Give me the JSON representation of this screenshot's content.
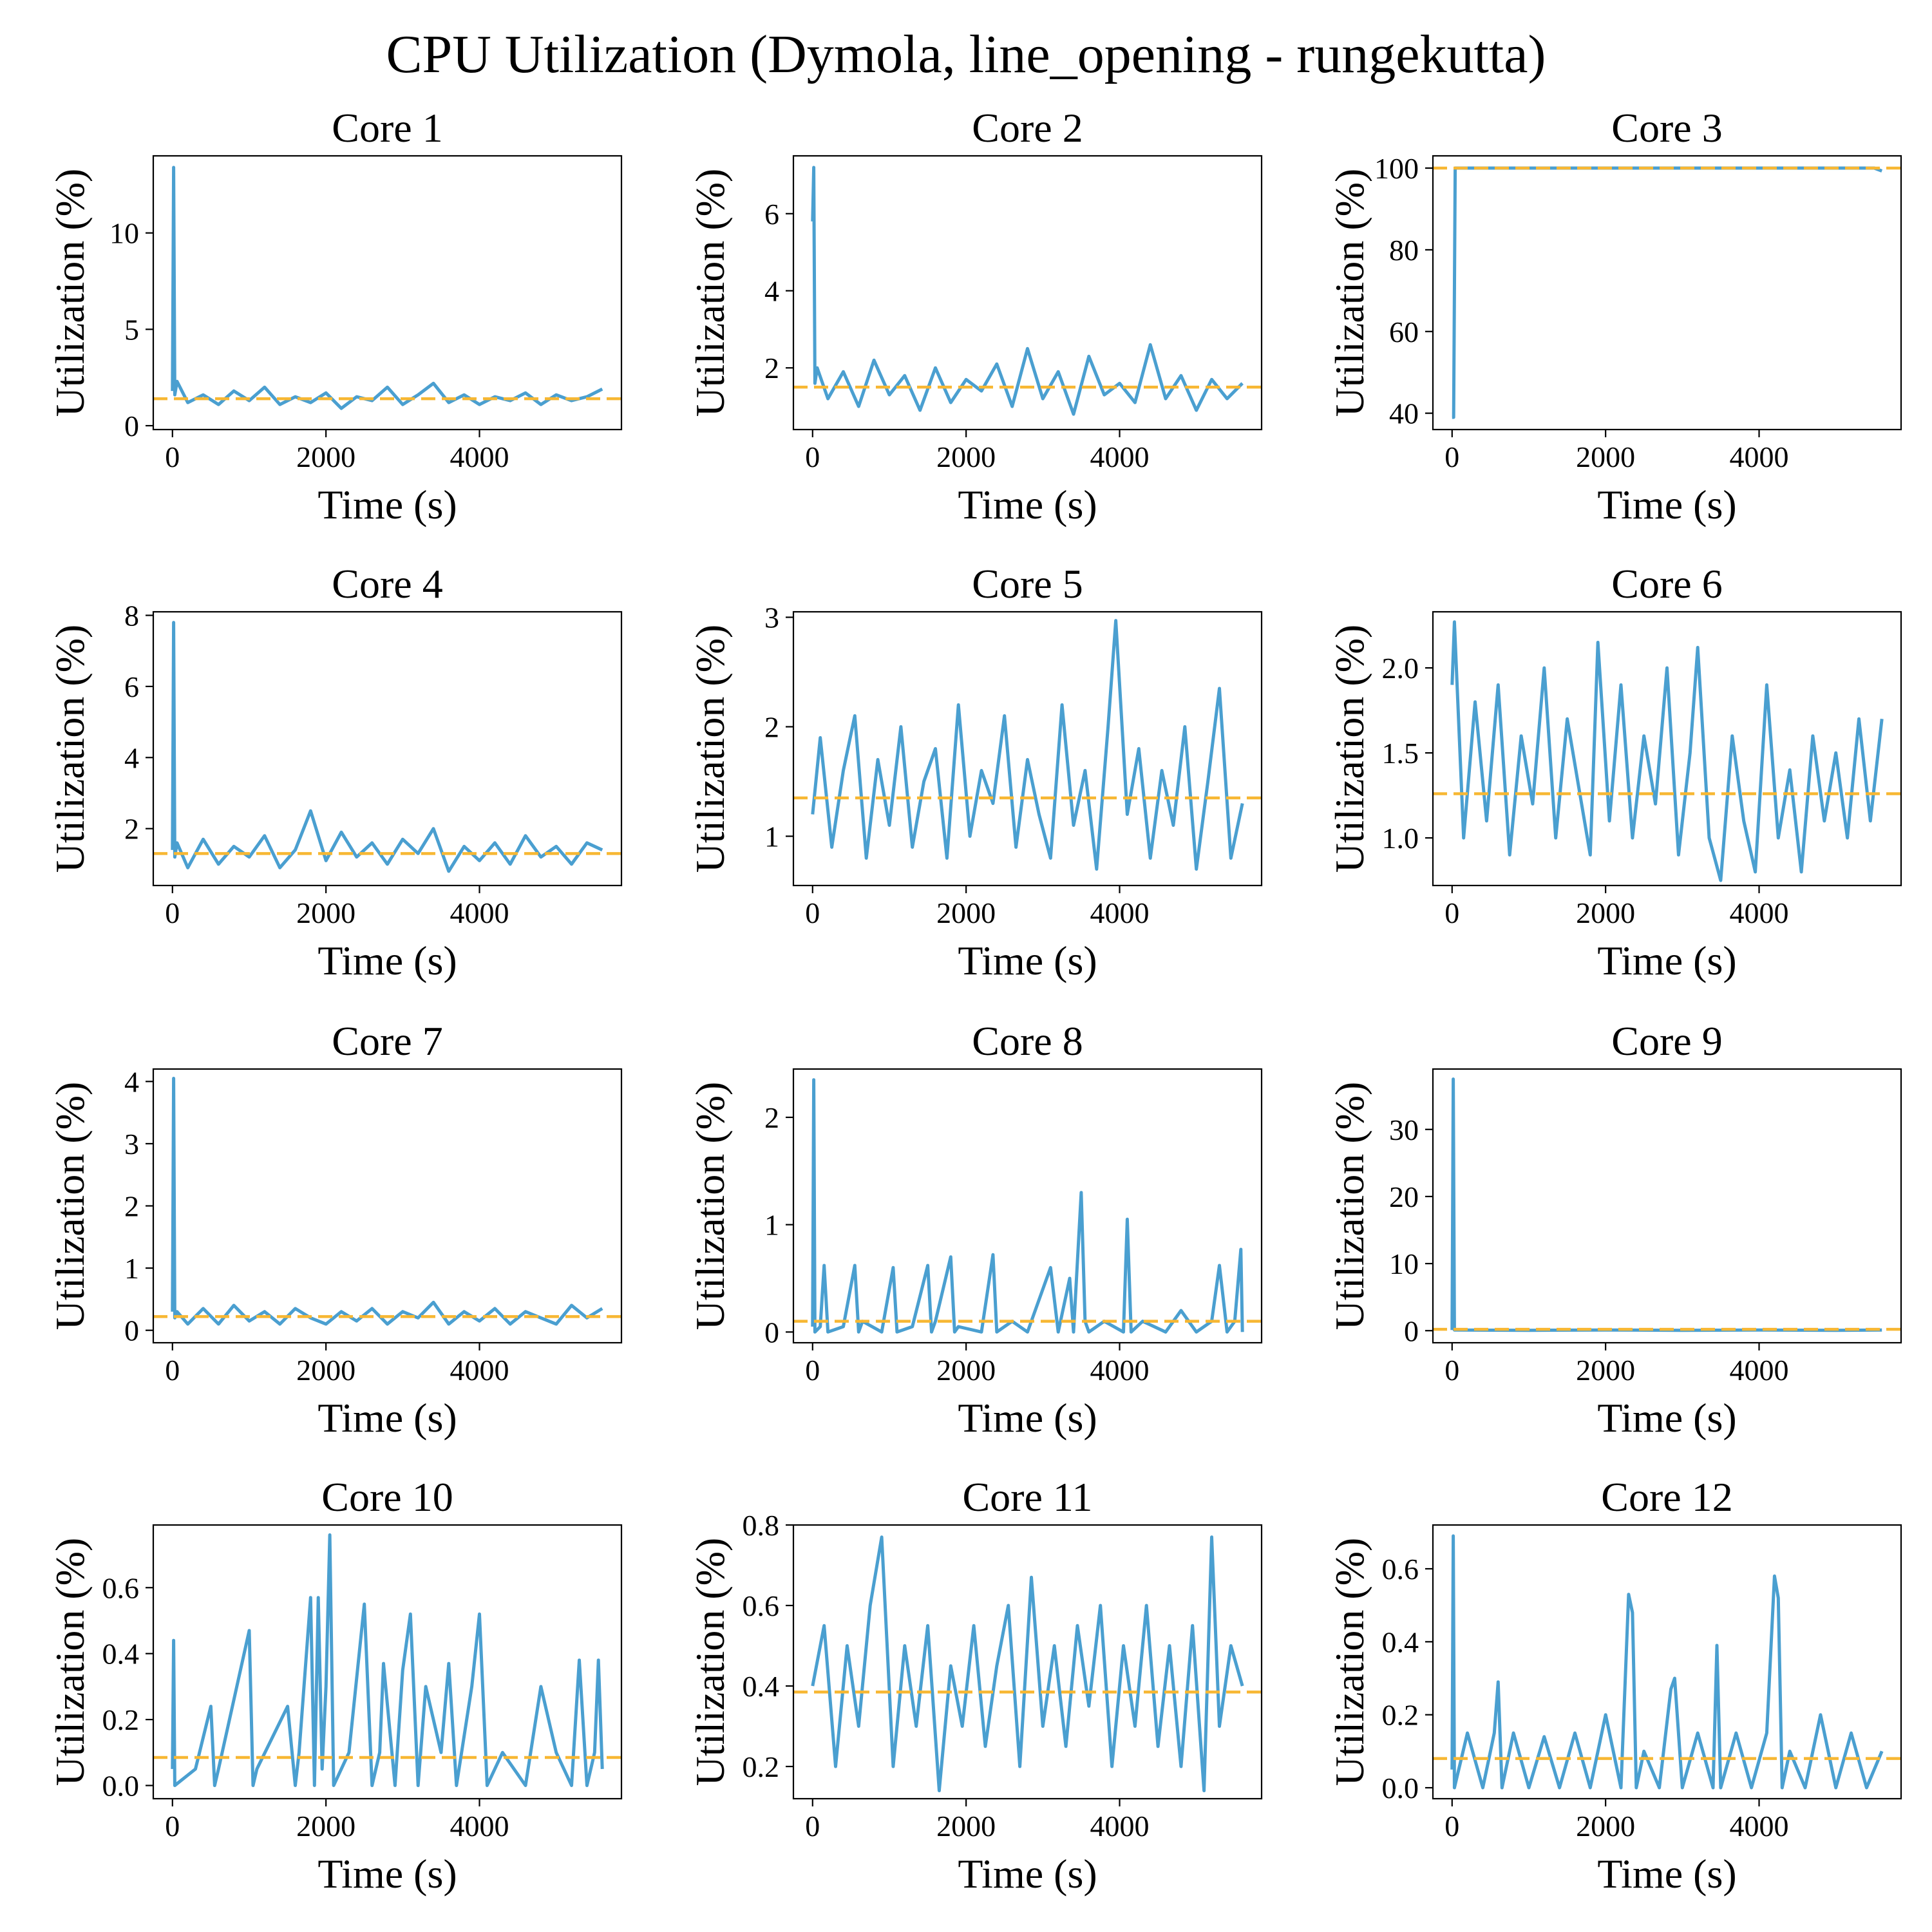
{
  "figure": {
    "title": "CPU Utilization (Dymola, line_opening - rungekutta)"
  },
  "colors": {
    "series": "#4a9fd0",
    "mean_line": "#f7b733",
    "axis": "#000000"
  },
  "chart_data": [
    {
      "type": "line",
      "title": "Core 1",
      "xlabel": "Time (s)",
      "ylabel": "Utilization (%)",
      "xlim": [
        -250,
        5850
      ],
      "ylim": [
        -0.2,
        14
      ],
      "xticks": [
        0,
        2000,
        4000
      ],
      "xtick_labels": [
        "0",
        "2000",
        "4000"
      ],
      "yticks": [
        0,
        5,
        10
      ],
      "ytick_labels": [
        "0",
        "5",
        "10"
      ],
      "mean": 1.4,
      "series_x_end": 5600,
      "x": [
        0,
        15,
        30,
        60,
        200,
        400,
        600,
        800,
        1000,
        1200,
        1400,
        1600,
        1800,
        2000,
        2200,
        2400,
        2600,
        2800,
        3000,
        3200,
        3400,
        3600,
        3800,
        4000,
        4200,
        4400,
        4600,
        4800,
        5000,
        5200,
        5400,
        5600
      ],
      "y": [
        1.8,
        13.4,
        1.6,
        2.3,
        1.2,
        1.6,
        1.1,
        1.8,
        1.3,
        2.0,
        1.1,
        1.5,
        1.2,
        1.7,
        0.9,
        1.5,
        1.3,
        2.0,
        1.1,
        1.6,
        2.2,
        1.2,
        1.6,
        1.1,
        1.5,
        1.3,
        1.7,
        1.1,
        1.6,
        1.3,
        1.5,
        1.9
      ]
    },
    {
      "type": "line",
      "title": "Core 2",
      "xlabel": "Time (s)",
      "ylabel": "Utilization (%)",
      "xlim": [
        -250,
        5850
      ],
      "ylim": [
        0.4,
        7.5
      ],
      "xticks": [
        0,
        2000,
        4000
      ],
      "xtick_labels": [
        "0",
        "2000",
        "4000"
      ],
      "yticks": [
        2,
        4,
        6
      ],
      "ytick_labels": [
        "2",
        "4",
        "6"
      ],
      "mean": 1.5,
      "series_x_end": 5600,
      "x": [
        0,
        15,
        30,
        60,
        200,
        400,
        600,
        800,
        1000,
        1200,
        1400,
        1600,
        1800,
        2000,
        2200,
        2400,
        2600,
        2800,
        3000,
        3200,
        3400,
        3600,
        3800,
        4000,
        4200,
        4400,
        4600,
        4800,
        5000,
        5200,
        5400,
        5600
      ],
      "y": [
        5.8,
        7.2,
        1.6,
        2.0,
        1.2,
        1.9,
        1.0,
        2.2,
        1.3,
        1.8,
        0.9,
        2.0,
        1.1,
        1.7,
        1.4,
        2.1,
        1.0,
        2.5,
        1.2,
        1.9,
        0.8,
        2.3,
        1.3,
        1.6,
        1.1,
        2.6,
        1.2,
        1.8,
        0.9,
        1.7,
        1.2,
        1.6
      ]
    },
    {
      "type": "line",
      "title": "Core 3",
      "xlabel": "Time (s)",
      "ylabel": "Utilization (%)",
      "xlim": [
        -250,
        5850
      ],
      "ylim": [
        36,
        103
      ],
      "xticks": [
        0,
        2000,
        4000
      ],
      "xtick_labels": [
        "0",
        "2000",
        "4000"
      ],
      "yticks": [
        40,
        60,
        80,
        100
      ],
      "ytick_labels": [
        "40",
        "60",
        "80",
        "100"
      ],
      "mean": 100,
      "series_x_end": 5600,
      "x": [
        0,
        20,
        40,
        1000,
        2000,
        3000,
        4000,
        5000,
        5500,
        5600
      ],
      "y": [
        39,
        39,
        100,
        100,
        100,
        100,
        100,
        100,
        100,
        99.3
      ]
    },
    {
      "type": "line",
      "title": "Core 4",
      "xlabel": "Time (s)",
      "ylabel": "Utilization (%)",
      "xlim": [
        -250,
        5850
      ],
      "ylim": [
        0.4,
        8.1
      ],
      "xticks": [
        0,
        2000,
        4000
      ],
      "xtick_labels": [
        "0",
        "2000",
        "4000"
      ],
      "yticks": [
        2,
        4,
        6,
        8
      ],
      "ytick_labels": [
        "2",
        "4",
        "6",
        "8"
      ],
      "mean": 1.3,
      "series_x_end": 5600,
      "x": [
        0,
        15,
        30,
        60,
        200,
        400,
        600,
        800,
        1000,
        1200,
        1400,
        1600,
        1800,
        2000,
        2200,
        2400,
        2600,
        2800,
        3000,
        3200,
        3400,
        3600,
        3800,
        4000,
        4200,
        4400,
        4600,
        4800,
        5000,
        5200,
        5400,
        5600
      ],
      "y": [
        1.4,
        7.8,
        1.2,
        1.6,
        0.9,
        1.7,
        1.0,
        1.5,
        1.2,
        1.8,
        0.9,
        1.4,
        2.5,
        1.1,
        1.9,
        1.2,
        1.6,
        1.0,
        1.7,
        1.3,
        2.0,
        0.8,
        1.5,
        1.1,
        1.6,
        1.0,
        1.8,
        1.2,
        1.5,
        1.0,
        1.6,
        1.4
      ]
    },
    {
      "type": "line",
      "title": "Core 5",
      "xlabel": "Time (s)",
      "ylabel": "Utilization (%)",
      "xlim": [
        -250,
        5850
      ],
      "ylim": [
        0.55,
        3.05
      ],
      "xticks": [
        0,
        2000,
        4000
      ],
      "xtick_labels": [
        "0",
        "2000",
        "4000"
      ],
      "yticks": [
        1,
        2,
        3
      ],
      "ytick_labels": [
        "1",
        "2",
        "3"
      ],
      "mean": 1.35,
      "series_x_end": 5600,
      "x": [
        0,
        100,
        250,
        400,
        550,
        700,
        850,
        1000,
        1150,
        1300,
        1450,
        1600,
        1750,
        1900,
        2050,
        2200,
        2350,
        2500,
        2650,
        2800,
        2950,
        3100,
        3250,
        3400,
        3550,
        3700,
        3850,
        3950,
        4100,
        4250,
        4400,
        4550,
        4700,
        4850,
        5000,
        5150,
        5300,
        5450,
        5600
      ],
      "y": [
        1.2,
        1.9,
        0.9,
        1.6,
        2.1,
        0.8,
        1.7,
        1.1,
        2.0,
        0.9,
        1.5,
        1.8,
        0.8,
        2.2,
        1.0,
        1.6,
        1.3,
        2.1,
        0.9,
        1.7,
        1.2,
        0.8,
        2.2,
        1.1,
        1.6,
        0.7,
        2.0,
        2.97,
        1.2,
        1.8,
        0.8,
        1.6,
        1.1,
        2.0,
        0.7,
        1.5,
        2.35,
        0.8,
        1.3
      ]
    },
    {
      "type": "line",
      "title": "Core 6",
      "xlabel": "Time (s)",
      "ylabel": "Utilization (%)",
      "xlim": [
        -250,
        5850
      ],
      "ylim": [
        0.72,
        2.33
      ],
      "xticks": [
        0,
        2000,
        4000
      ],
      "xtick_labels": [
        "0",
        "2000",
        "4000"
      ],
      "yticks": [
        1.0,
        1.5,
        2.0
      ],
      "ytick_labels": [
        "1.0",
        "1.5",
        "2.0"
      ],
      "mean": 1.26,
      "series_x_end": 5600,
      "x": [
        0,
        30,
        150,
        300,
        450,
        600,
        750,
        900,
        1050,
        1200,
        1350,
        1500,
        1650,
        1800,
        1900,
        2050,
        2200,
        2350,
        2500,
        2650,
        2800,
        2950,
        3100,
        3200,
        3350,
        3500,
        3650,
        3800,
        3950,
        4100,
        4250,
        4400,
        4550,
        4700,
        4850,
        5000,
        5150,
        5300,
        5450,
        5600
      ],
      "y": [
        1.9,
        2.27,
        1.0,
        1.8,
        1.1,
        1.9,
        0.9,
        1.6,
        1.2,
        2.0,
        1.0,
        1.7,
        1.3,
        0.9,
        2.15,
        1.1,
        1.9,
        1.0,
        1.6,
        1.2,
        2.0,
        0.9,
        1.5,
        2.12,
        1.0,
        0.75,
        1.6,
        1.1,
        0.8,
        1.9,
        1.0,
        1.4,
        0.8,
        1.6,
        1.1,
        1.5,
        1.0,
        1.7,
        1.1,
        1.7
      ]
    },
    {
      "type": "line",
      "title": "Core 7",
      "xlabel": "Time (s)",
      "ylabel": "Utilization (%)",
      "xlim": [
        -250,
        5850
      ],
      "ylim": [
        -0.2,
        4.2
      ],
      "xticks": [
        0,
        2000,
        4000
      ],
      "xtick_labels": [
        "0",
        "2000",
        "4000"
      ],
      "yticks": [
        0,
        1,
        2,
        3,
        4
      ],
      "ytick_labels": [
        "0",
        "1",
        "2",
        "3",
        "4"
      ],
      "mean": 0.22,
      "series_x_end": 5600,
      "x": [
        0,
        15,
        30,
        60,
        200,
        400,
        600,
        800,
        1000,
        1200,
        1400,
        1600,
        1800,
        2000,
        2200,
        2400,
        2600,
        2800,
        3000,
        3200,
        3400,
        3600,
        3800,
        4000,
        4200,
        4400,
        4600,
        4800,
        5000,
        5200,
        5400,
        5600
      ],
      "y": [
        0.3,
        4.05,
        0.2,
        0.3,
        0.1,
        0.35,
        0.1,
        0.4,
        0.15,
        0.3,
        0.1,
        0.35,
        0.2,
        0.1,
        0.3,
        0.15,
        0.35,
        0.1,
        0.3,
        0.2,
        0.45,
        0.1,
        0.3,
        0.15,
        0.35,
        0.1,
        0.3,
        0.2,
        0.1,
        0.4,
        0.2,
        0.35
      ]
    },
    {
      "type": "line",
      "title": "Core 8",
      "xlabel": "Time (s)",
      "ylabel": "Utilization (%)",
      "xlim": [
        -250,
        5850
      ],
      "ylim": [
        -0.1,
        2.45
      ],
      "xticks": [
        0,
        2000,
        4000
      ],
      "xtick_labels": [
        "0",
        "2000",
        "4000"
      ],
      "yticks": [
        0,
        1,
        2
      ],
      "ytick_labels": [
        "0",
        "1",
        "2"
      ],
      "mean": 0.1,
      "series_x_end": 5600,
      "x": [
        0,
        15,
        30,
        100,
        150,
        200,
        400,
        550,
        600,
        650,
        900,
        1050,
        1100,
        1300,
        1500,
        1550,
        1600,
        1800,
        1850,
        1900,
        2200,
        2350,
        2400,
        2600,
        2800,
        3100,
        3200,
        3350,
        3400,
        3500,
        3550,
        3600,
        3800,
        4050,
        4100,
        4150,
        4300,
        4600,
        4800,
        5000,
        5200,
        5300,
        5400,
        5500,
        5580,
        5600
      ],
      "y": [
        0.05,
        2.35,
        0.0,
        0.05,
        0.62,
        0.0,
        0.05,
        0.62,
        0.0,
        0.1,
        0.0,
        0.6,
        0.0,
        0.05,
        0.62,
        0.0,
        0.1,
        0.7,
        0.0,
        0.05,
        0.0,
        0.72,
        0.0,
        0.1,
        0.0,
        0.6,
        0.0,
        0.5,
        0.0,
        1.3,
        0.1,
        0.0,
        0.1,
        0.0,
        1.05,
        0.0,
        0.1,
        0.0,
        0.2,
        0.0,
        0.1,
        0.62,
        0.0,
        0.1,
        0.77,
        0.0
      ]
    },
    {
      "type": "line",
      "title": "Core 9",
      "xlabel": "Time (s)",
      "ylabel": "Utilization (%)",
      "xlim": [
        -250,
        5850
      ],
      "ylim": [
        -1.8,
        39
      ],
      "xticks": [
        0,
        2000,
        4000
      ],
      "xtick_labels": [
        "0",
        "2000",
        "4000"
      ],
      "yticks": [
        0,
        10,
        20,
        30
      ],
      "ytick_labels": [
        "0",
        "10",
        "20",
        "30"
      ],
      "mean": 0.2,
      "series_x_end": 5600,
      "x": [
        0,
        15,
        30,
        1000,
        2000,
        3000,
        4000,
        5000,
        5600
      ],
      "y": [
        0.1,
        37.5,
        0.1,
        0.05,
        0.1,
        0.05,
        0.1,
        0.05,
        0.1
      ]
    },
    {
      "type": "line",
      "title": "Core 10",
      "xlabel": "Time (s)",
      "ylabel": "Utilization (%)",
      "xlim": [
        -250,
        5850
      ],
      "ylim": [
        -0.04,
        0.79
      ],
      "xticks": [
        0,
        2000,
        4000
      ],
      "xtick_labels": [
        "0",
        "2000",
        "4000"
      ],
      "yticks": [
        0.0,
        0.2,
        0.4,
        0.6
      ],
      "ytick_labels": [
        "0.0",
        "0.2",
        "0.4",
        "0.6"
      ],
      "mean": 0.085,
      "series_x_end": 5600,
      "x": [
        0,
        15,
        30,
        300,
        500,
        550,
        600,
        1000,
        1050,
        1100,
        1500,
        1600,
        1650,
        1800,
        1850,
        1900,
        1950,
        2000,
        2050,
        2100,
        2300,
        2500,
        2600,
        2700,
        2750,
        2900,
        3000,
        3100,
        3200,
        3300,
        3500,
        3600,
        3700,
        3900,
        4000,
        4100,
        4300,
        4600,
        4800,
        5000,
        5200,
        5300,
        5400,
        5500,
        5550,
        5600
      ],
      "y": [
        0.05,
        0.44,
        0.0,
        0.05,
        0.24,
        0.0,
        0.05,
        0.47,
        0.0,
        0.05,
        0.24,
        0.0,
        0.1,
        0.57,
        0.0,
        0.57,
        0.05,
        0.3,
        0.76,
        0.0,
        0.1,
        0.55,
        0.0,
        0.1,
        0.37,
        0.0,
        0.35,
        0.52,
        0.0,
        0.3,
        0.1,
        0.37,
        0.0,
        0.3,
        0.52,
        0.0,
        0.1,
        0.0,
        0.3,
        0.1,
        0.0,
        0.38,
        0.0,
        0.1,
        0.38,
        0.05
      ]
    },
    {
      "type": "line",
      "title": "Core 11",
      "xlabel": "Time (s)",
      "ylabel": "Utilization (%)",
      "xlim": [
        -250,
        5850
      ],
      "ylim": [
        0.12,
        0.8
      ],
      "xticks": [
        0,
        2000,
        4000
      ],
      "xtick_labels": [
        "0",
        "2000",
        "4000"
      ],
      "yticks": [
        0.2,
        0.4,
        0.6,
        0.8
      ],
      "ytick_labels": [
        "0.2",
        "0.4",
        "0.6",
        "0.8"
      ],
      "mean": 0.385,
      "series_x_end": 5600,
      "x": [
        0,
        150,
        300,
        450,
        600,
        750,
        900,
        1050,
        1200,
        1350,
        1500,
        1650,
        1800,
        1950,
        2100,
        2250,
        2400,
        2550,
        2700,
        2850,
        3000,
        3150,
        3300,
        3450,
        3600,
        3750,
        3900,
        4050,
        4200,
        4350,
        4500,
        4650,
        4800,
        4950,
        5100,
        5200,
        5300,
        5450,
        5600
      ],
      "y": [
        0.4,
        0.55,
        0.2,
        0.5,
        0.3,
        0.6,
        0.77,
        0.2,
        0.5,
        0.3,
        0.55,
        0.14,
        0.45,
        0.3,
        0.55,
        0.25,
        0.45,
        0.6,
        0.2,
        0.67,
        0.3,
        0.5,
        0.25,
        0.55,
        0.35,
        0.6,
        0.2,
        0.5,
        0.3,
        0.6,
        0.25,
        0.5,
        0.2,
        0.55,
        0.14,
        0.77,
        0.3,
        0.5,
        0.4
      ]
    },
    {
      "type": "line",
      "title": "Core 12",
      "xlabel": "Time (s)",
      "ylabel": "Utilization (%)",
      "xlim": [
        -250,
        5850
      ],
      "ylim": [
        -0.03,
        0.72
      ],
      "xticks": [
        0,
        2000,
        4000
      ],
      "xtick_labels": [
        "0",
        "2000",
        "4000"
      ],
      "yticks": [
        0.0,
        0.2,
        0.4,
        0.6
      ],
      "ytick_labels": [
        "0.0",
        "0.2",
        "0.4",
        "0.6"
      ],
      "mean": 0.08,
      "series_x_end": 5600,
      "x": [
        0,
        15,
        30,
        200,
        400,
        550,
        600,
        650,
        800,
        1000,
        1200,
        1400,
        1600,
        1800,
        2000,
        2200,
        2300,
        2350,
        2400,
        2500,
        2700,
        2850,
        2900,
        3000,
        3200,
        3400,
        3450,
        3500,
        3700,
        3900,
        4100,
        4200,
        4250,
        4300,
        4400,
        4600,
        4800,
        5000,
        5200,
        5400,
        5600
      ],
      "y": [
        0.05,
        0.69,
        0.0,
        0.15,
        0.0,
        0.15,
        0.29,
        0.0,
        0.15,
        0.0,
        0.14,
        0.0,
        0.15,
        0.0,
        0.2,
        0.0,
        0.53,
        0.48,
        0.0,
        0.1,
        0.0,
        0.27,
        0.3,
        0.0,
        0.15,
        0.0,
        0.39,
        0.0,
        0.15,
        0.0,
        0.15,
        0.58,
        0.52,
        0.0,
        0.1,
        0.0,
        0.2,
        0.0,
        0.15,
        0.0,
        0.1
      ]
    }
  ]
}
